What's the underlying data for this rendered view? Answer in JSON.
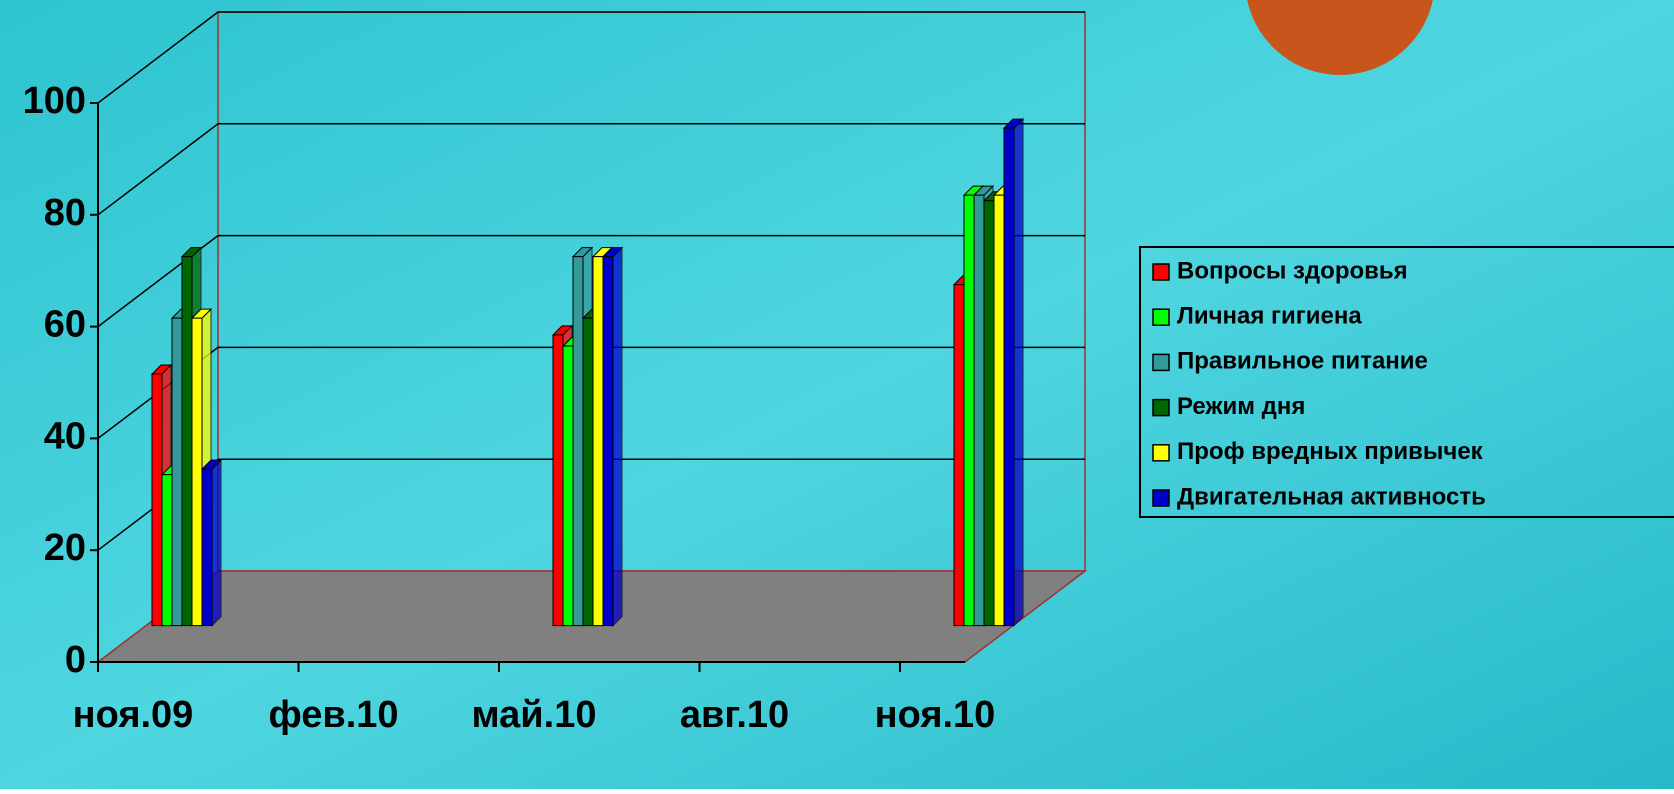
{
  "chart_data": {
    "type": "bar3d",
    "categories": [
      "ноя.09",
      "фев.10",
      "май.10",
      "авг.10",
      "ноя.10"
    ],
    "series": [
      {
        "name": "Вопросы здоровья",
        "color": "#ff0000",
        "values": [
          45,
          null,
          52,
          null,
          61
        ]
      },
      {
        "name": "Личная гигиена",
        "color": "#00ff00",
        "values": [
          27,
          null,
          50,
          null,
          77
        ]
      },
      {
        "name": "Правильное питание",
        "color": "#339999",
        "values": [
          55,
          null,
          66,
          null,
          77
        ]
      },
      {
        "name": "Режим дня",
        "color": "#006600",
        "values": [
          66,
          null,
          55,
          null,
          76
        ]
      },
      {
        "name": "Проф вредных привычек",
        "color": "#ffff00",
        "values": [
          55,
          null,
          66,
          null,
          77
        ]
      },
      {
        "name": "Двигательная активность",
        "color": "#0000cc",
        "values": [
          28,
          null,
          66,
          null,
          89
        ]
      }
    ],
    "ylim": [
      0,
      100
    ],
    "yticks": [
      0,
      20,
      40,
      60,
      80,
      100
    ],
    "grid": true,
    "legend": "right"
  }
}
